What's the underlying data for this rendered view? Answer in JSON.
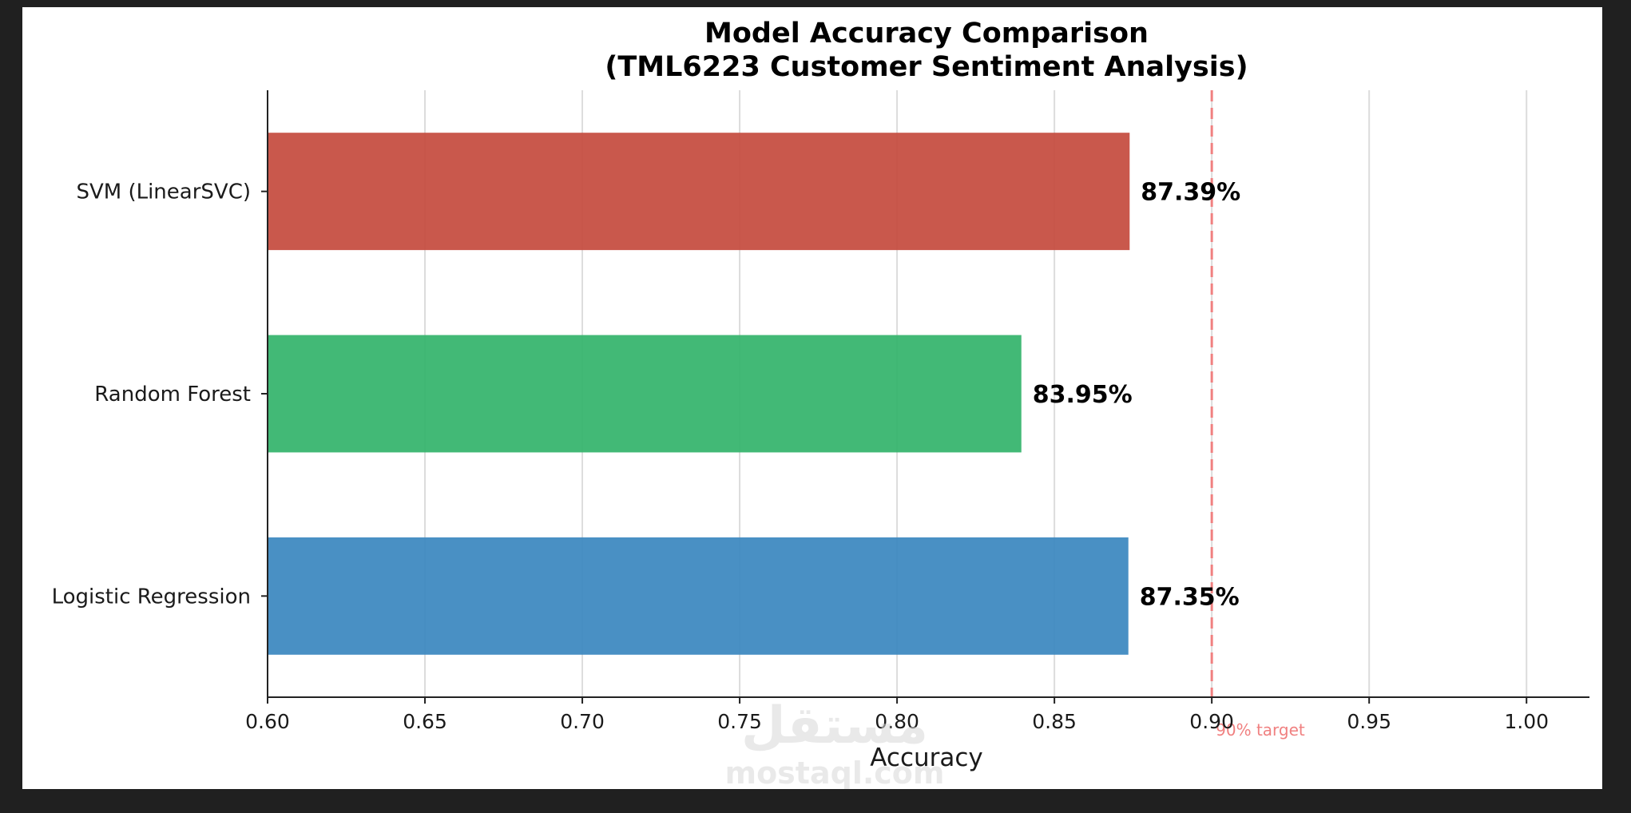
{
  "chart_data": {
    "type": "bar",
    "orientation": "horizontal",
    "title": "Model Accuracy Comparison",
    "subtitle": "(TML6223 Customer Sentiment Analysis)",
    "xlabel": "Accuracy",
    "ylabel": "",
    "xlim": [
      0.6,
      1.02
    ],
    "xticks": [
      "0.60",
      "0.65",
      "0.70",
      "0.75",
      "0.80",
      "0.85",
      "0.90",
      "0.95",
      "1.00"
    ],
    "grid": "vertical",
    "categories": [
      "Logistic Regression",
      "Random Forest",
      "SVM (LinearSVC)"
    ],
    "values": [
      0.8735,
      0.8395,
      0.8739
    ],
    "data_labels": [
      "87.35%",
      "83.95%",
      "87.39%"
    ],
    "colors": [
      "#3a87bf",
      "#32b36a",
      "#c44a3d"
    ],
    "reference_line": {
      "value": 0.9,
      "label": "90% target",
      "color": "#f08080",
      "style": "dashed"
    }
  },
  "watermark": {
    "arabic": "مستقل",
    "latin": "mostaql.com"
  }
}
